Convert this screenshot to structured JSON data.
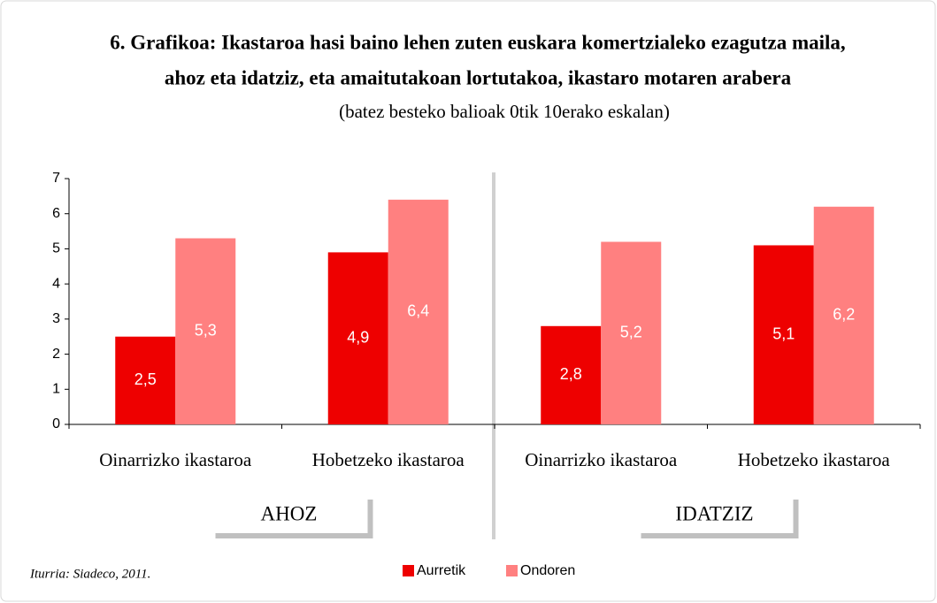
{
  "chart_data": {
    "type": "bar",
    "title": [
      "6. Grafikoa: Ikastaroa hasi baino lehen zuten euskara komertzialeko ezagutza maila,",
      "ahoz eta idatziz, eta amaitutakoan lortutakoa, ikastaro motaren arabera"
    ],
    "subtitle": "(batez besteko balioak 0tik 10erako eskalan)",
    "categories": [
      "Oinarrizko ikastaroa",
      "Hobetzeko ikastaroa",
      "Oinarrizko ikastaroa",
      "Hobetzeko ikastaroa"
    ],
    "group_labels": [
      "AHOZ",
      "IDATZIZ"
    ],
    "series": [
      {
        "name": "Aurretik",
        "color": "#ee0000",
        "values": [
          2.5,
          4.9,
          2.8,
          5.1
        ],
        "value_labels": [
          "2,5",
          "4,9",
          "2,8",
          "5,1"
        ]
      },
      {
        "name": "Ondoren",
        "color": "#ff8080",
        "values": [
          5.3,
          6.4,
          5.2,
          6.2
        ],
        "value_labels": [
          "5,3",
          "6,4",
          "5,2",
          "6,2"
        ]
      }
    ],
    "ylim": [
      0,
      7
    ],
    "yticks": [
      0,
      1,
      2,
      3,
      4,
      5,
      6,
      7
    ],
    "source": "Iturria: Siadeco, 2011."
  }
}
